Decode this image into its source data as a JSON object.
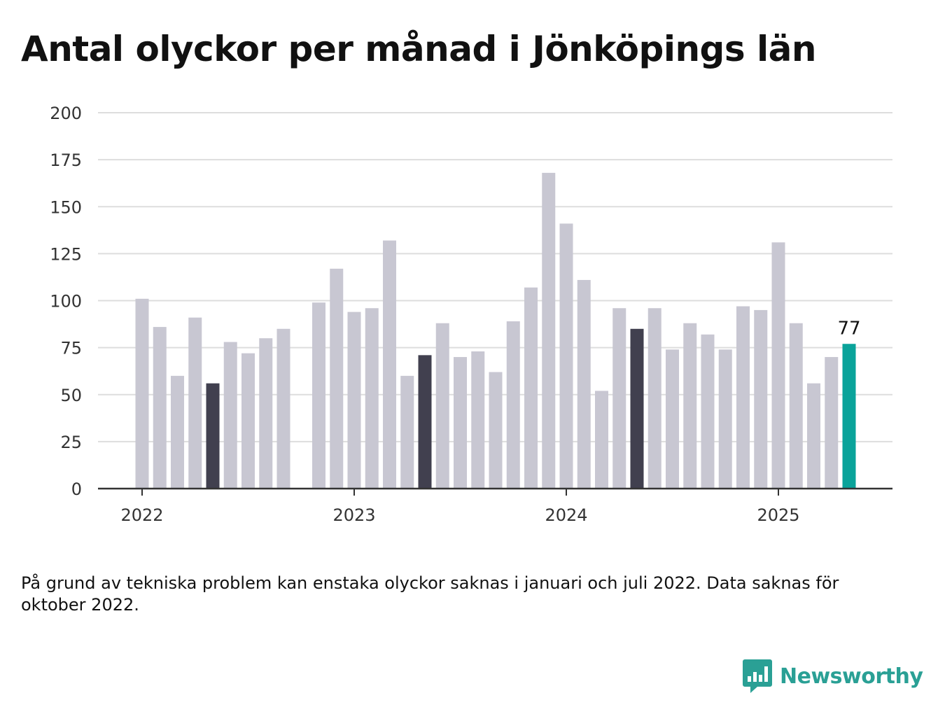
{
  "title": "Antal olyckor per månad i Jönköpings län",
  "footnote": "På grund av tekniska problem kan enstaka olyckor saknas i januari och juli 2022. Data saknas för oktober 2022.",
  "brand": {
    "name": "Newsworthy",
    "icon": "newsworthy-logo-icon",
    "color": "#2aa095"
  },
  "chart_data": {
    "type": "bar",
    "title": "Antal olyckor per månad i Jönköpings län",
    "xlabel": "",
    "ylabel": "",
    "ylim": [
      0,
      200
    ],
    "yticks": [
      0,
      25,
      50,
      75,
      100,
      125,
      150,
      175,
      200
    ],
    "xtick_labels": [
      "2022",
      "2023",
      "2024",
      "2025"
    ],
    "grid": true,
    "colors": {
      "default": "#c8c7d2",
      "highlight": "#41404f",
      "latest": "#0aa39a"
    },
    "categories": [
      "2022-01",
      "2022-02",
      "2022-03",
      "2022-04",
      "2022-05",
      "2022-06",
      "2022-07",
      "2022-08",
      "2022-09",
      "2022-10",
      "2022-11",
      "2022-12",
      "2023-01",
      "2023-02",
      "2023-03",
      "2023-04",
      "2023-05",
      "2023-06",
      "2023-07",
      "2023-08",
      "2023-09",
      "2023-10",
      "2023-11",
      "2023-12",
      "2024-01",
      "2024-02",
      "2024-03",
      "2024-04",
      "2024-05",
      "2024-06",
      "2024-07",
      "2024-08",
      "2024-09",
      "2024-10",
      "2024-11",
      "2024-12",
      "2025-01",
      "2025-02",
      "2025-03",
      "2025-04",
      "2025-05"
    ],
    "values": [
      101,
      86,
      60,
      91,
      56,
      78,
      72,
      80,
      85,
      null,
      99,
      117,
      94,
      96,
      132,
      60,
      71,
      88,
      70,
      73,
      62,
      89,
      107,
      168,
      141,
      111,
      52,
      96,
      85,
      96,
      74,
      88,
      82,
      74,
      97,
      95,
      131,
      88,
      56,
      70,
      77
    ],
    "highlighted": [
      "2022-05",
      "2023-05",
      "2024-05"
    ],
    "latest": "2025-05",
    "annotations": [
      {
        "category": "2025-05",
        "label": "77"
      }
    ]
  }
}
